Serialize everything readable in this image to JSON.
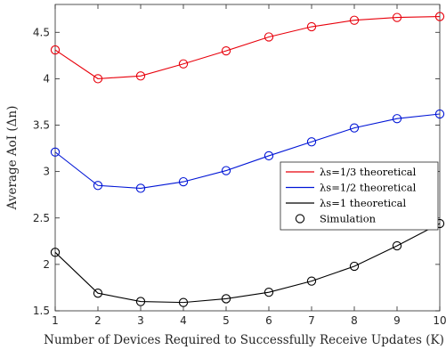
{
  "chart_data": {
    "type": "line",
    "title": "",
    "xlabel": "Number of Devices Required to Successfully Receive Updates (K)",
    "ylabel": "Average AoI (Δn)",
    "xlim": [
      1,
      10
    ],
    "ylim": [
      1.5,
      4.8
    ],
    "x": [
      1,
      2,
      3,
      4,
      5,
      6,
      7,
      8,
      9,
      10
    ],
    "xticks": [
      "1",
      "2",
      "3",
      "4",
      "5",
      "6",
      "7",
      "8",
      "9",
      "10"
    ],
    "yticks": [
      "1.5",
      "2",
      "2.5",
      "3",
      "3.5",
      "4",
      "4.5"
    ],
    "grid": false,
    "legend_position": "middle-right",
    "series": [
      {
        "name": "λs=1/3 theoretical",
        "color": "#e8000b",
        "values": [
          4.31,
          4.0,
          4.03,
          4.16,
          4.3,
          4.45,
          4.56,
          4.63,
          4.66,
          4.67
        ]
      },
      {
        "name": "λs=1/2 theoretical",
        "color": "#0015d6",
        "values": [
          3.21,
          2.85,
          2.82,
          2.89,
          3.01,
          3.17,
          3.32,
          3.47,
          3.57,
          3.62
        ]
      },
      {
        "name": "λs=1 theoretical",
        "color": "#000000",
        "values": [
          2.13,
          1.69,
          1.6,
          1.59,
          1.63,
          1.7,
          1.82,
          1.98,
          2.2,
          2.44
        ]
      }
    ],
    "markers": {
      "name": "Simulation",
      "symbol": "circle"
    }
  }
}
